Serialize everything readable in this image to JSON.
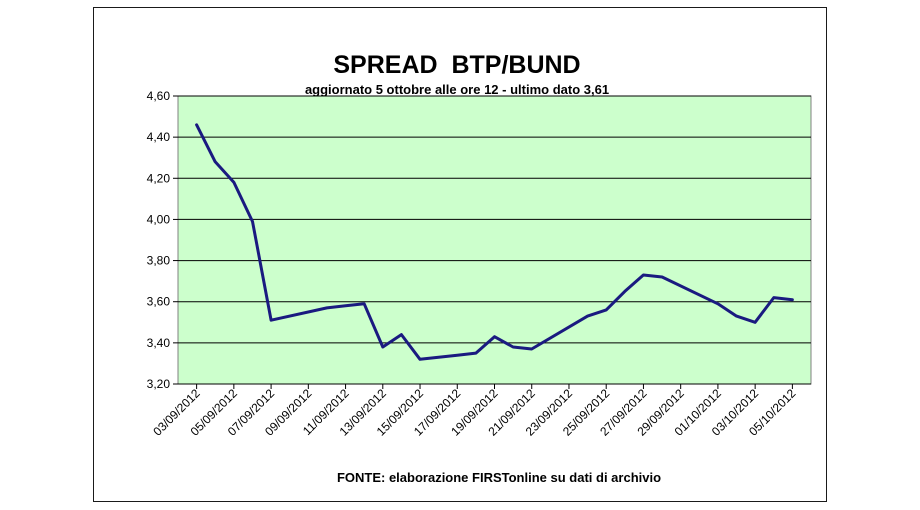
{
  "chart_data": {
    "type": "line",
    "title": "SPREAD  BTP/BUND",
    "subtitle": "aggiornato 5 ottobre alle ore 12 - ultimo dato 3,61",
    "source": "FONTE: elaborazione FIRSTonline su dati di archivio",
    "xlabel": "",
    "ylabel": "",
    "ylim": [
      3.2,
      4.6
    ],
    "y_ticks": [
      "3,20",
      "3,40",
      "3,60",
      "3,80",
      "4,00",
      "4,20",
      "4,40",
      "4,60"
    ],
    "x_tick_labels": [
      "03/09/2012",
      "05/09/2012",
      "07/09/2012",
      "09/09/2012",
      "11/09/2012",
      "13/09/2012",
      "15/09/2012",
      "17/09/2012",
      "19/09/2012",
      "21/09/2012",
      "23/09/2012",
      "25/09/2012",
      "27/09/2012",
      "29/09/2012",
      "01/10/2012",
      "03/10/2012",
      "05/10/2012"
    ],
    "x_range": [
      "2012-09-02",
      "2012-10-06"
    ],
    "grid": true,
    "legend": "none",
    "colors": {
      "plot_background": "#ccffcc",
      "line": "#1a1a80",
      "gridline": "#000000"
    },
    "series": [
      {
        "x": [
          "2012-09-03",
          "2012-09-04",
          "2012-09-05",
          "2012-09-06",
          "2012-09-07",
          "2012-09-10",
          "2012-09-11",
          "2012-09-12",
          "2012-09-13",
          "2012-09-14",
          "2012-09-15",
          "2012-09-17",
          "2012-09-18",
          "2012-09-19",
          "2012-09-20",
          "2012-09-21",
          "2012-09-24",
          "2012-09-25",
          "2012-09-26",
          "2012-09-27",
          "2012-09-28",
          "2012-10-01",
          "2012-10-02",
          "2012-10-03",
          "2012-10-04",
          "2012-10-05"
        ],
        "values": [
          4.46,
          4.28,
          4.18,
          3.99,
          3.51,
          3.57,
          3.58,
          3.59,
          3.38,
          3.44,
          3.32,
          3.34,
          3.35,
          3.43,
          3.38,
          3.37,
          3.53,
          3.56,
          3.65,
          3.73,
          3.72,
          3.59,
          3.53,
          3.5,
          3.62,
          3.61
        ]
      }
    ]
  }
}
